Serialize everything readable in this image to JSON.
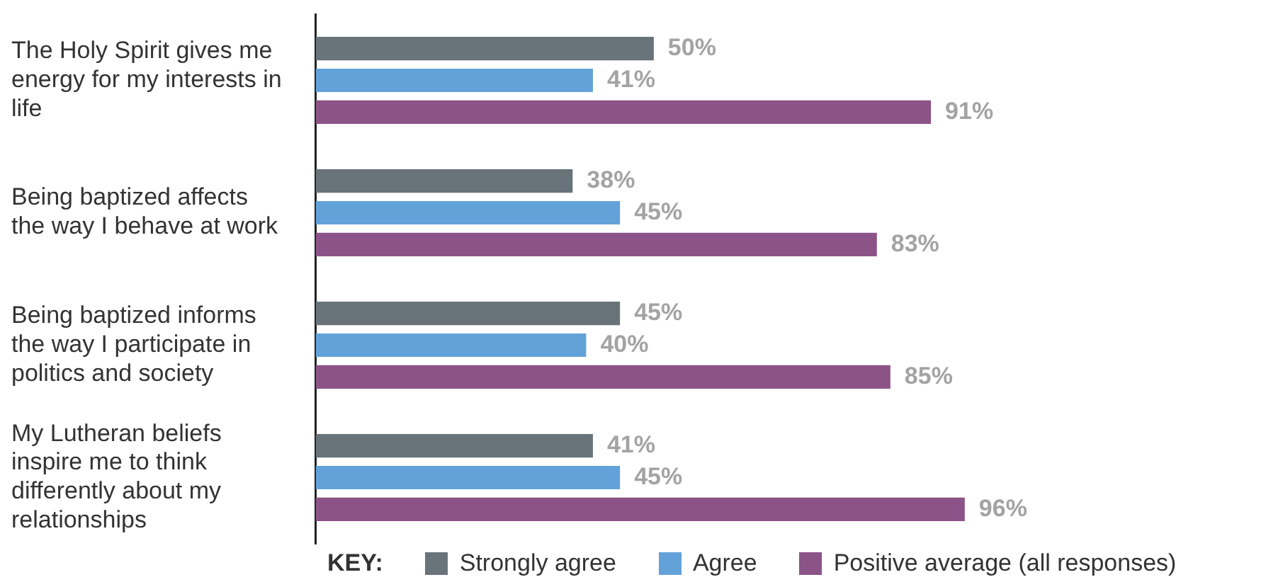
{
  "chart_data": {
    "type": "bar",
    "orientation": "horizontal",
    "legend": "bottom",
    "legend_title": "KEY:",
    "tick_labels": "y",
    "categories": [
      "The Holy Spirit gives me energy for my interests in life",
      "Being baptized affects the way I behave at work",
      "Being baptized informs the way I participate in politics and society",
      "My Lutheran beliefs inspire me to think differently about my relationships"
    ],
    "series": [
      {
        "name": "Strongly agree",
        "color": "#68737a",
        "values": [
          50,
          38,
          45,
          41
        ],
        "value_labels": [
          "50%",
          "38%",
          "45%",
          "41%"
        ]
      },
      {
        "name": "Agree",
        "color": "#62a2d8",
        "values": [
          41,
          45,
          40,
          45
        ],
        "value_labels": [
          "41%",
          "45%",
          "40%",
          "45%"
        ]
      },
      {
        "name": "Positive average (all responses)",
        "color": "#8b5387",
        "values": [
          91,
          83,
          85,
          96
        ],
        "value_labels": [
          "91%",
          "83%",
          "85%",
          "96%"
        ]
      }
    ]
  }
}
